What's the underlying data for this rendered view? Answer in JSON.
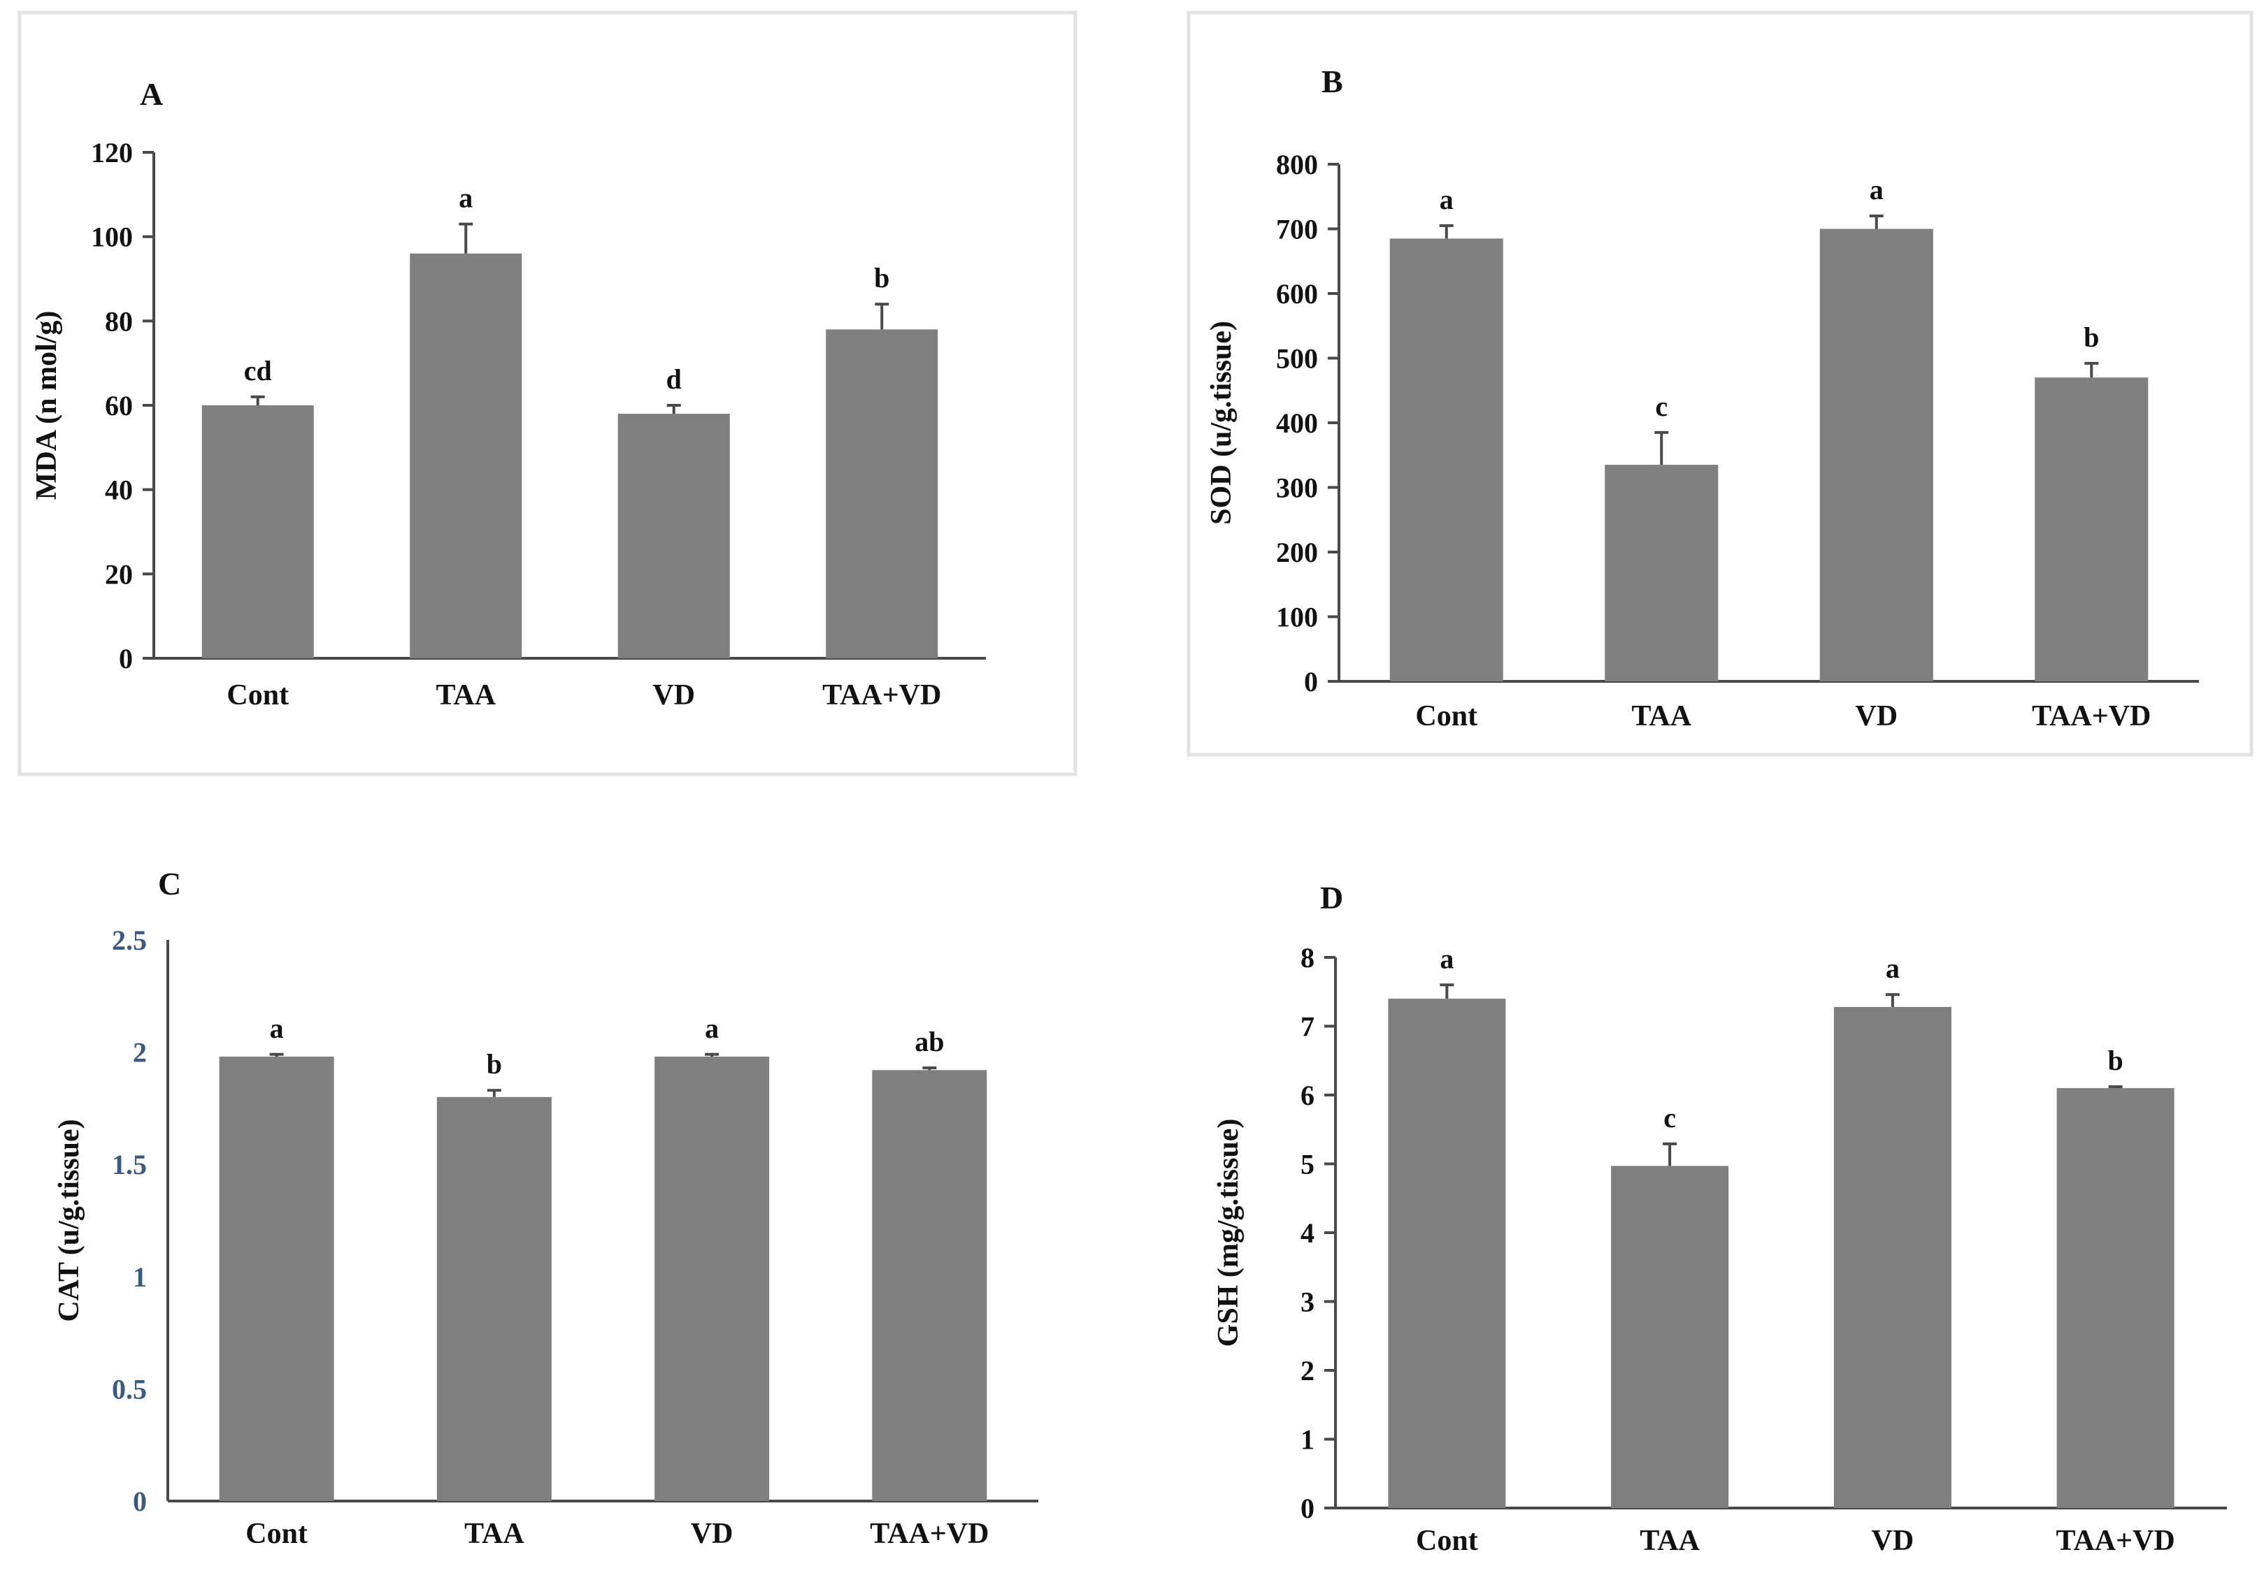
{
  "figure": {
    "background": "#ffffff",
    "bar_color": "#7f7f7f",
    "axis_color": "#4a4a4a"
  },
  "chart_data": [
    {
      "panel": "A",
      "type": "bar",
      "categories": [
        "Cont",
        "TAA",
        "VD",
        "TAA+VD"
      ],
      "values": [
        60,
        96,
        58,
        78
      ],
      "errors": [
        2,
        7,
        2,
        6
      ],
      "significance": [
        "cd",
        "a",
        "d",
        "b"
      ],
      "ylabel": "MDA (n mol/g)",
      "ylim": [
        0,
        120
      ],
      "yticks": [
        0,
        20,
        40,
        60,
        80,
        100,
        120
      ],
      "ytick_labels": [
        "0",
        "20",
        "40",
        "60",
        "80",
        "100",
        "120"
      ]
    },
    {
      "panel": "B",
      "type": "bar",
      "categories": [
        "Cont",
        "TAA",
        "VD",
        "TAA+VD"
      ],
      "values": [
        685,
        335,
        700,
        470
      ],
      "errors": [
        20,
        50,
        20,
        22
      ],
      "significance": [
        "a",
        "c",
        "a",
        "b"
      ],
      "ylabel": "SOD (u/g.tissue)",
      "ylim": [
        0,
        800
      ],
      "yticks": [
        0,
        100,
        200,
        300,
        400,
        500,
        600,
        700,
        800
      ],
      "ytick_labels": [
        "0",
        "100",
        "200",
        "300",
        "400",
        "500",
        "600",
        "700",
        "800"
      ]
    },
    {
      "panel": "C",
      "type": "bar",
      "categories": [
        "Cont",
        "TAA",
        "VD",
        "TAA+VD"
      ],
      "values": [
        1.98,
        1.8,
        1.98,
        1.92
      ],
      "errors": [
        0.01,
        0.03,
        0.01,
        0.01
      ],
      "significance": [
        "a",
        "b",
        "a",
        "ab"
      ],
      "ylabel": "CAT (u/g.tissue)",
      "ylim": [
        0,
        2.5
      ],
      "yticks": [
        0,
        0.5,
        1,
        1.5,
        2,
        2.5
      ],
      "ytick_labels": [
        "0",
        "0.5",
        "1",
        "1.5",
        "2",
        "2.5"
      ]
    },
    {
      "panel": "D",
      "type": "bar",
      "categories": [
        "Cont",
        "TAA",
        "VD",
        "TAA+VD"
      ],
      "values": [
        7.4,
        4.97,
        7.28,
        6.1
      ],
      "errors": [
        0.2,
        0.32,
        0.18,
        0.02
      ],
      "significance": [
        "a",
        "c",
        "a",
        "b"
      ],
      "ylabel": "GSH (mg/g.tissue)",
      "ylim": [
        0,
        8
      ],
      "yticks": [
        0,
        1,
        2,
        3,
        4,
        5,
        6,
        7,
        8
      ],
      "ytick_labels": [
        "0",
        "1",
        "2",
        "3",
        "4",
        "5",
        "6",
        "7",
        "8"
      ]
    }
  ]
}
